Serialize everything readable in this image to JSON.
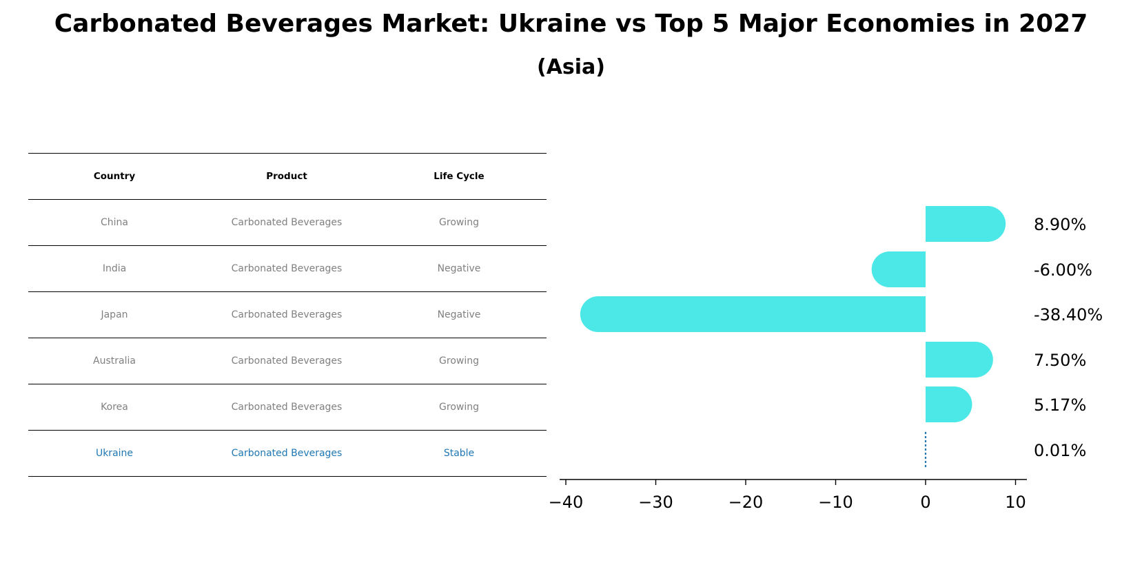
{
  "title": "Carbonated Beverages Market: Ukraine vs Top 5 Major Economies in 2027",
  "subtitle": "(Asia)",
  "table": {
    "headers": [
      "Country",
      "Product",
      "Life Cycle"
    ],
    "rows": [
      [
        "China",
        "Carbonated Beverages",
        "Growing"
      ],
      [
        "India",
        "Carbonated Beverages",
        "Negative"
      ],
      [
        "Japan",
        "Carbonated Beverages",
        "Negative"
      ],
      [
        "Australia",
        "Carbonated Beverages",
        "Growing"
      ],
      [
        "Korea",
        "Carbonated Beverages",
        "Growing"
      ],
      [
        "Ukraine",
        "Carbonated Beverages",
        "Stable"
      ]
    ],
    "highlight_row": 5
  },
  "colors": {
    "bar": "#4ce8e8",
    "highlight": "#1f77b4",
    "muted_text": "#808080",
    "text": "#000000"
  },
  "chart_data": {
    "type": "bar",
    "orientation": "horizontal",
    "categories": [
      "China",
      "India",
      "Japan",
      "Australia",
      "Korea",
      "Ukraine"
    ],
    "values": [
      8.9,
      -6.0,
      -38.4,
      7.5,
      5.17,
      0.01
    ],
    "data_labels": [
      "8.90%",
      "-6.00%",
      "-38.40%",
      "7.50%",
      "5.17%",
      "0.01%"
    ],
    "xlim": [
      -40,
      10
    ],
    "xticks": [
      -40,
      -30,
      -20,
      -10,
      0,
      10
    ],
    "xtick_labels": [
      "−40",
      "−30",
      "−20",
      "−10",
      "0",
      "10"
    ],
    "reference_line": {
      "value": 0,
      "style": "dotted",
      "category": "Ukraine"
    },
    "xlabel": "",
    "ylabel": ""
  }
}
